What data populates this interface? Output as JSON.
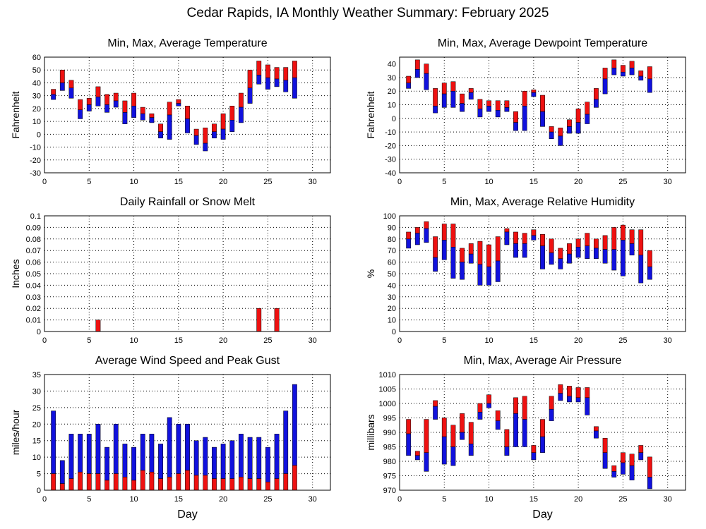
{
  "figure": {
    "title": "Cedar Rapids, IA Monthly Weather Summary: February 2025",
    "colors": {
      "upper": "#ee1111",
      "lower": "#1111dd",
      "grid": "#000000"
    }
  },
  "chart_data": [
    {
      "id": "temp",
      "type": "bar",
      "title": "Min, Max, Average Temperature",
      "xlabel": "",
      "ylabel": "Fahrenheit",
      "xlim": [
        0,
        32
      ],
      "ylim": [
        -30,
        60
      ],
      "yticks": [
        -30,
        -20,
        -10,
        0,
        10,
        20,
        30,
        40,
        50,
        60
      ],
      "xticks": [
        0,
        5,
        10,
        15,
        20,
        25,
        30
      ],
      "encoding": "range",
      "series": [
        {
          "role": "min",
          "values": [
            27,
            34,
            28,
            12,
            18,
            22,
            17,
            21,
            8,
            13,
            11,
            9,
            -3,
            -4,
            22,
            1,
            -8,
            -13,
            -3,
            -4,
            2,
            9,
            24,
            39,
            35,
            37,
            33,
            28
          ]
        },
        {
          "role": "avg",
          "values": [
            31,
            40,
            36,
            19,
            23,
            29,
            23,
            26,
            17,
            22,
            16,
            13,
            2,
            15,
            24,
            12,
            -1,
            -7,
            2,
            4,
            11,
            21,
            36,
            46,
            44,
            43,
            42,
            44
          ]
        },
        {
          "role": "max",
          "values": [
            35,
            50,
            42,
            27,
            28,
            37,
            31,
            32,
            26,
            32,
            21,
            16,
            8,
            25,
            27,
            22,
            4,
            5,
            8,
            16,
            22,
            32,
            50,
            57,
            54,
            52,
            52,
            57
          ]
        }
      ]
    },
    {
      "id": "dew",
      "type": "bar",
      "title": "Min, Max, Average Dewpoint Temperature",
      "xlabel": "",
      "ylabel": "Fahrenheit",
      "xlim": [
        0,
        32
      ],
      "ylim": [
        -40,
        45
      ],
      "yticks": [
        -40,
        -30,
        -20,
        -10,
        0,
        10,
        20,
        30,
        40
      ],
      "xticks": [
        0,
        5,
        10,
        15,
        20,
        25,
        30
      ],
      "encoding": "range",
      "series": [
        {
          "role": "min",
          "values": [
            22,
            30,
            21,
            4,
            8,
            8,
            5,
            14,
            1,
            5,
            1,
            5,
            -9,
            -9,
            16,
            -6,
            -15,
            -20,
            -11,
            -11,
            -4,
            8,
            18,
            32,
            31,
            32,
            28,
            19
          ]
        },
        {
          "role": "avg",
          "values": [
            26,
            36,
            33,
            9,
            18,
            20,
            11,
            19,
            7,
            9,
            6,
            8,
            -3,
            9,
            19,
            5,
            -10,
            -13,
            -6,
            -3,
            3,
            14,
            29,
            37,
            34,
            37,
            31,
            29
          ]
        },
        {
          "role": "max",
          "values": [
            31,
            43,
            40,
            22,
            26,
            27,
            18,
            22,
            14,
            13,
            13,
            13,
            5,
            20,
            21,
            17,
            -6,
            -7,
            -1,
            7,
            12,
            22,
            37,
            43,
            39,
            42,
            35,
            38
          ]
        }
      ]
    },
    {
      "id": "rain",
      "type": "bar",
      "title": "Daily Rainfall or Snow Melt",
      "xlabel": "",
      "ylabel": "Inches",
      "xlim": [
        0,
        32
      ],
      "ylim": [
        0,
        0.1
      ],
      "yticks": [
        0,
        0.01,
        0.02,
        0.03,
        0.04,
        0.05,
        0.06,
        0.07,
        0.08,
        0.09,
        0.1
      ],
      "xticks": [
        0,
        5,
        10,
        15,
        20,
        25,
        30
      ],
      "encoding": "bars",
      "series": [
        {
          "role": "rain",
          "values": [
            0,
            0,
            0,
            0,
            0,
            0.01,
            0,
            0,
            0,
            0,
            0,
            0,
            0,
            0,
            0,
            0,
            0,
            0,
            0,
            0,
            0,
            0,
            0,
            0.02,
            0,
            0.02,
            0,
            0
          ]
        }
      ]
    },
    {
      "id": "rh",
      "type": "bar",
      "title": "Min, Max, Average Relative Humidity",
      "xlabel": "",
      "ylabel": "%",
      "xlim": [
        0,
        32
      ],
      "ylim": [
        0,
        100
      ],
      "yticks": [
        0,
        10,
        20,
        30,
        40,
        50,
        60,
        70,
        80,
        90,
        100
      ],
      "xticks": [
        0,
        5,
        10,
        15,
        20,
        25,
        30
      ],
      "encoding": "range",
      "series": [
        {
          "role": "min",
          "values": [
            72,
            75,
            77,
            52,
            62,
            46,
            45,
            59,
            40,
            40,
            43,
            75,
            64,
            64,
            79,
            54,
            58,
            54,
            59,
            64,
            63,
            63,
            59,
            53,
            48,
            66,
            42,
            45
          ]
        },
        {
          "role": "avg",
          "values": [
            80,
            85,
            89,
            64,
            79,
            73,
            60,
            67,
            58,
            56,
            61,
            86,
            76,
            76,
            83,
            74,
            68,
            63,
            67,
            73,
            74,
            72,
            71,
            71,
            79,
            76,
            66,
            56
          ]
        },
        {
          "role": "max",
          "values": [
            86,
            90,
            95,
            82,
            93,
            93,
            72,
            76,
            78,
            75,
            82,
            89,
            86,
            85,
            88,
            84,
            80,
            72,
            76,
            80,
            85,
            80,
            83,
            90,
            92,
            88,
            88,
            70
          ]
        }
      ]
    },
    {
      "id": "wind",
      "type": "bar",
      "title": "Average Wind Speed and Peak Gust",
      "xlabel": "Day",
      "ylabel": "miles/hour",
      "xlim": [
        0,
        32
      ],
      "ylim": [
        0,
        35
      ],
      "yticks": [
        0,
        5,
        10,
        15,
        20,
        25,
        30,
        35
      ],
      "xticks": [
        0,
        5,
        10,
        15,
        20,
        25,
        30
      ],
      "encoding": "stack",
      "series": [
        {
          "role": "avg",
          "values": [
            5,
            2,
            3.5,
            5.5,
            5,
            5,
            3,
            5,
            4,
            3,
            6,
            5.5,
            3.5,
            4,
            5,
            6,
            4.5,
            4.5,
            3.5,
            3.5,
            3.5,
            4,
            3.5,
            3.5,
            2.5,
            3.5,
            5,
            7.5
          ]
        },
        {
          "role": "gust",
          "values": [
            24,
            9,
            17,
            17,
            17,
            20,
            13,
            20,
            14,
            13,
            17,
            17,
            14,
            22,
            20,
            20,
            15,
            16,
            13,
            14,
            15,
            17,
            16,
            16,
            13,
            17,
            24,
            32
          ]
        }
      ]
    },
    {
      "id": "pres",
      "type": "bar",
      "title": "Min, Max, Average Air Pressure",
      "xlabel": "Day",
      "ylabel": "millibars",
      "xlim": [
        0,
        32
      ],
      "ylim": [
        970,
        1010
      ],
      "yticks": [
        970,
        975,
        980,
        985,
        990,
        995,
        1000,
        1005,
        1010
      ],
      "xticks": [
        0,
        5,
        10,
        15,
        20,
        25,
        30
      ],
      "encoding": "range",
      "series": [
        {
          "role": "min",
          "values": [
            982,
            980.5,
            976.5,
            994.5,
            979,
            978.5,
            987.5,
            982,
            994.5,
            998.5,
            991,
            982,
            985,
            985,
            980.5,
            983,
            994,
            1001,
            1000.5,
            1000.5,
            996,
            988,
            977.5,
            974.5,
            975.5,
            973.5,
            980.5,
            970.5
          ]
        },
        {
          "role": "avg",
          "values": [
            989.5,
            982,
            983,
            999,
            988.5,
            985,
            990,
            986,
            997,
            1000,
            994,
            985,
            996.5,
            994.5,
            983,
            988.5,
            998,
            1003.5,
            1002.5,
            1002,
            1002,
            990.5,
            983,
            976.5,
            979.5,
            978.5,
            983,
            974.5
          ]
        },
        {
          "role": "max",
          "values": [
            994.5,
            983.5,
            994.5,
            1001,
            995,
            992.5,
            996.5,
            993.5,
            1000,
            1003,
            997.5,
            991,
            1002,
            1002.5,
            985.5,
            994.5,
            1002.5,
            1006.5,
            1006,
            1005.5,
            1005.5,
            992,
            988,
            978.5,
            983,
            982.5,
            985.5,
            981.5
          ]
        }
      ]
    }
  ]
}
